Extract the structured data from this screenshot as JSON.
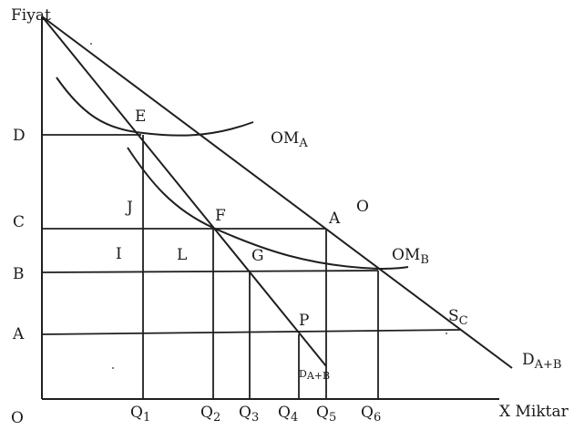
{
  "axes": {
    "y_label": "Fiyat",
    "x_label": "X Miktar",
    "origin_label": "O"
  },
  "price_labels": {
    "D": "D",
    "C": "C",
    "B": "B",
    "A": "A"
  },
  "quantity_labels": [
    {
      "base": "Q",
      "sub": "1"
    },
    {
      "base": "Q",
      "sub": "2"
    },
    {
      "base": "Q",
      "sub": "3"
    },
    {
      "base": "Q",
      "sub": "4"
    },
    {
      "base": "Q",
      "sub": "5"
    },
    {
      "base": "Q",
      "sub": "6"
    }
  ],
  "points": {
    "E": "E",
    "F": "F",
    "G": "G",
    "P": "P",
    "A": "A",
    "O": "O",
    "J": "J",
    "I": "I",
    "L": "L"
  },
  "curves": {
    "om_a": {
      "base": "OM",
      "sub": "A"
    },
    "om_b": {
      "base": "OM",
      "sub": "B"
    },
    "sc": {
      "base": "S",
      "sub": "C"
    },
    "d_total": {
      "base": "D",
      "sub": "A+B"
    },
    "d_inner": {
      "base": "D",
      "sub": "A+B"
    }
  }
}
